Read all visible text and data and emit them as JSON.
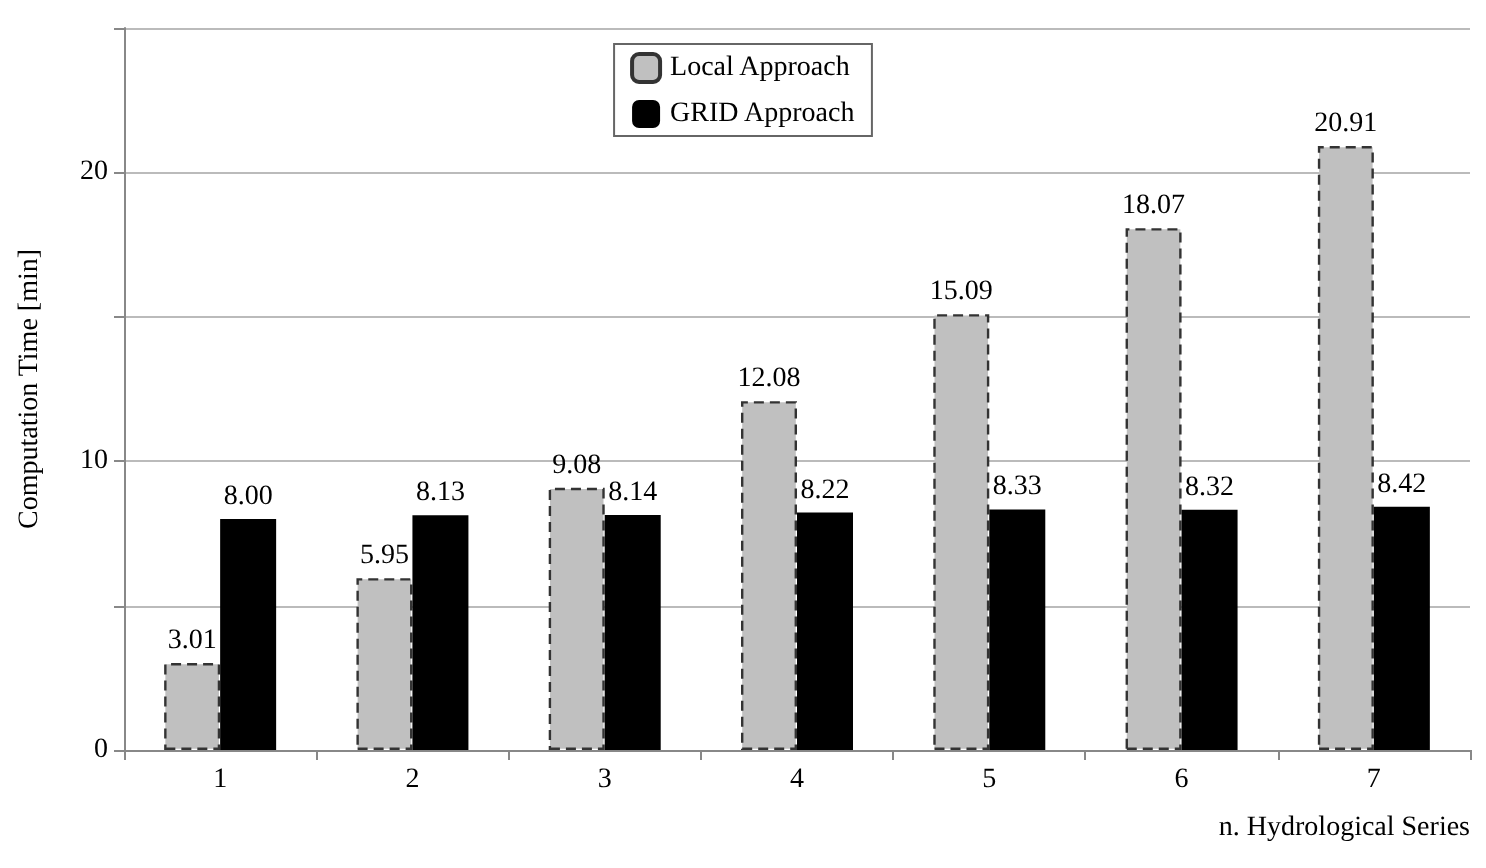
{
  "chart_data": {
    "type": "bar",
    "xlabel": "n. Hydrological Series",
    "ylabel": "Computation Time [min]",
    "categories": [
      "1",
      "2",
      "3",
      "4",
      "5",
      "6",
      "7"
    ],
    "series": [
      {
        "name": "Local Approach",
        "color": "#c0c0c0",
        "line_style": "dashed",
        "values": [
          3.01,
          5.95,
          9.08,
          12.08,
          15.09,
          18.07,
          20.91
        ],
        "value_labels": [
          "3.01",
          "5.95",
          "9.08",
          "12.08",
          "15.09",
          "18.07",
          "20.91"
        ]
      },
      {
        "name": "GRID Approach",
        "color": "#000000",
        "values": [
          8.0,
          8.13,
          8.14,
          8.22,
          8.33,
          8.32,
          8.42
        ],
        "value_labels": [
          "8.00",
          "8.13",
          "8.14",
          "8.22",
          "8.33",
          "8.32",
          "8.42"
        ]
      }
    ],
    "ylim": [
      0,
      25
    ],
    "yticks": [
      0,
      {
        "value": 5,
        "label": null
      },
      10,
      {
        "value": 15,
        "label": null
      },
      20,
      {
        "value": 25,
        "label": null
      }
    ],
    "grid": "y",
    "legend": "top"
  }
}
